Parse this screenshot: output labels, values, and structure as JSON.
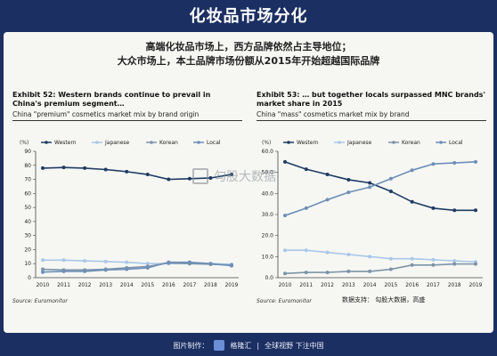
{
  "banner": {
    "title": "化妆品市场分化"
  },
  "subtitle": {
    "line1": "高端化妆品市场上，西方品牌依然占主导地位；",
    "line2": "大众市场上，本土品牌市场份额从2015年开始超越国际品牌"
  },
  "watermark": "勾股大数据",
  "credit": "数据支持：    勾股大数据，高盛",
  "footer": {
    "prefix": "图片制作：",
    "brand": "格隆汇",
    "slogan": "全球视野 下注中国"
  },
  "chart_data": [
    {
      "type": "line",
      "title": "Exhibit 52: Western brands continue to prevail in China's premium segment…",
      "subtitle": "China \"premium\" cosmetics market mix by brand origin",
      "ylabel": "(%)",
      "source": "Source: Euromonitor",
      "x": [
        "2010",
        "2011",
        "2012",
        "2013",
        "2014",
        "2015",
        "2016",
        "2017",
        "2018",
        "2019"
      ],
      "ylim": [
        0,
        90
      ],
      "yticks": [
        "0",
        "10",
        "20",
        "30",
        "40",
        "50",
        "60",
        "70",
        "80",
        "90"
      ],
      "legend_position": "top",
      "grid": false,
      "series": [
        {
          "name": "Western",
          "color": "#1f3b63",
          "marker": "circle",
          "values": [
            78,
            78.5,
            78,
            77,
            75.5,
            73.5,
            70,
            70.5,
            71,
            73.5
          ]
        },
        {
          "name": "Japanese",
          "color": "#a9c7e8",
          "marker": "circle",
          "values": [
            12.5,
            12.5,
            12,
            11.5,
            11,
            10,
            10,
            10,
            10,
            9.5
          ]
        },
        {
          "name": "Korean",
          "color": "#7d93a8",
          "marker": "circle",
          "values": [
            6,
            5.5,
            5.5,
            6,
            7,
            8,
            10.5,
            10,
            9.5,
            9
          ]
        },
        {
          "name": "Local",
          "color": "#6e8fb8",
          "marker": "circle",
          "values": [
            4,
            4.5,
            4.5,
            5.5,
            6,
            7,
            11,
            11,
            10,
            8.5
          ]
        }
      ]
    },
    {
      "type": "line",
      "title": "Exhibit 53: … but together locals surpassed MNC brands' market share in 2015",
      "subtitle": "China \"mass\" cosmetics market mix by brand",
      "ylabel": "(%)",
      "source": "Source: Euromonitor",
      "x": [
        "2010",
        "2011",
        "2012",
        "2013",
        "2014",
        "2015",
        "2016",
        "2017",
        "2018",
        "2019"
      ],
      "ylim": [
        0,
        60
      ],
      "yticks": [
        "0.0",
        "10.0",
        "20.0",
        "30.0",
        "40.0",
        "50.0",
        "60.0"
      ],
      "legend_position": "top",
      "grid": false,
      "series": [
        {
          "name": "Western",
          "color": "#1f3b63",
          "marker": "circle",
          "values": [
            55,
            51.5,
            49,
            46.5,
            45,
            41,
            36,
            33,
            32,
            32
          ]
        },
        {
          "name": "Japanese",
          "color": "#a9c7e8",
          "marker": "circle",
          "values": [
            13,
            13,
            12,
            11,
            10,
            9,
            9,
            8.5,
            8,
            7.5
          ]
        },
        {
          "name": "Korean",
          "color": "#7d93a8",
          "marker": "circle",
          "values": [
            2,
            2.5,
            2.5,
            3,
            3,
            4,
            6,
            6,
            6.5,
            6.5
          ]
        },
        {
          "name": "Local",
          "color": "#6e8fb8",
          "marker": "circle",
          "values": [
            29.5,
            33,
            37,
            40.5,
            43,
            47,
            51,
            54,
            54.5,
            55
          ]
        }
      ]
    }
  ]
}
